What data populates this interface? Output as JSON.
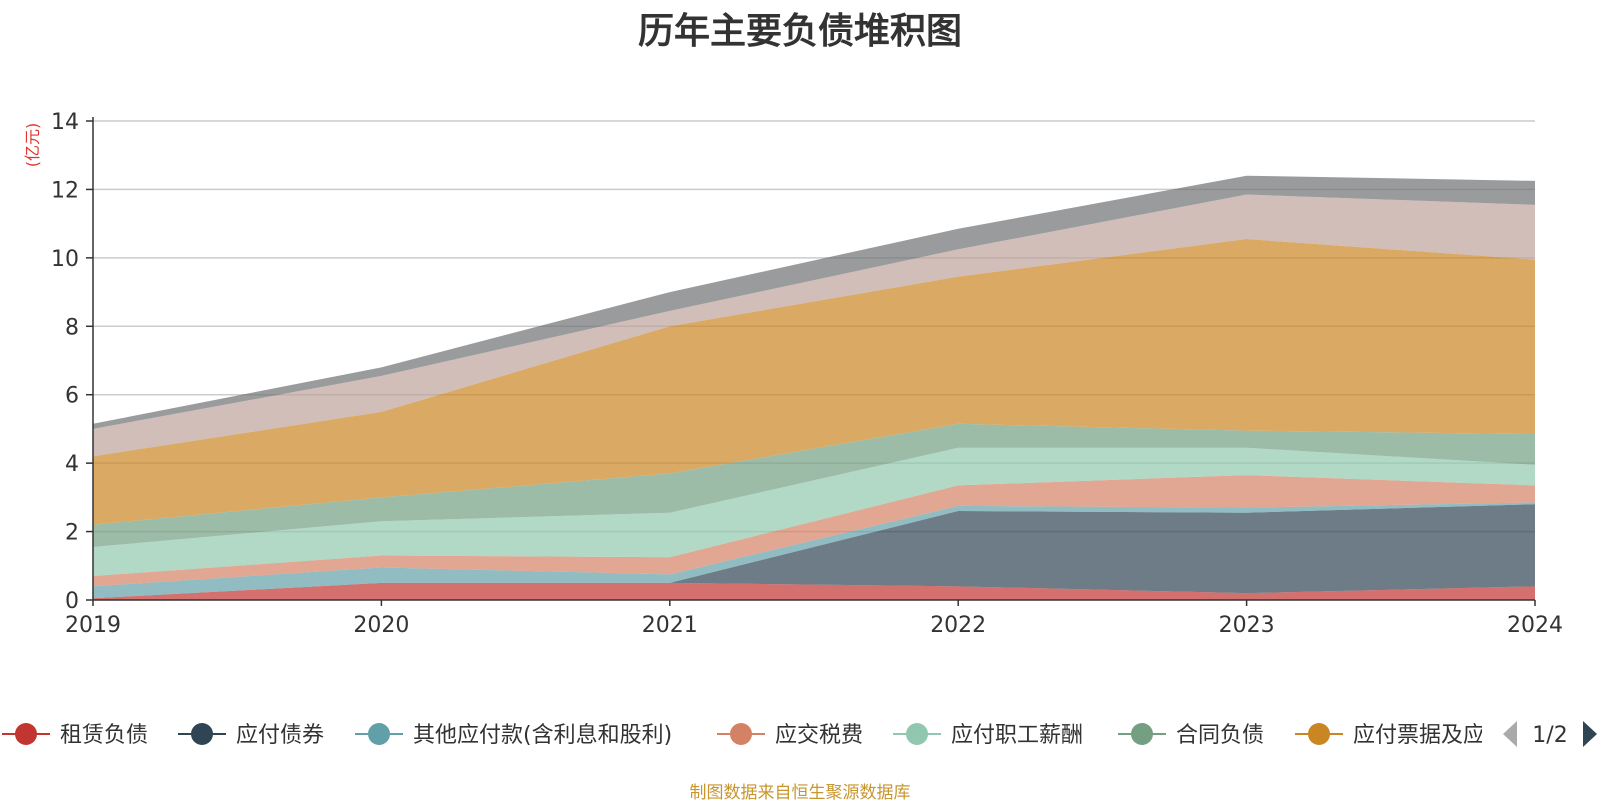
{
  "source_note": "制图数据来自恒生聚源数据库",
  "legend_pager": {
    "label": "1/2"
  },
  "chart_data": {
    "type": "area",
    "stacked": true,
    "title": "历年主要负债堆积图",
    "ylabel": "(亿元)",
    "xlabel": "",
    "categories": [
      "2019",
      "2020",
      "2021",
      "2022",
      "2023",
      "2024"
    ],
    "ylim": [
      0,
      14
    ],
    "yticks": [
      0,
      2,
      4,
      6,
      8,
      10,
      12,
      14
    ],
    "grid": true,
    "legend_position": "bottom",
    "series": [
      {
        "name": "租赁负债",
        "color": "#c23531",
        "values": [
          0.05,
          0.5,
          0.5,
          0.4,
          0.2,
          0.4
        ]
      },
      {
        "name": "应付债券",
        "color": "#2f4554",
        "values": [
          0.0,
          0.0,
          0.0,
          2.2,
          2.35,
          2.4
        ]
      },
      {
        "name": "其他应付款(含利息和股利)",
        "color": "#61a0a8",
        "values": [
          0.35,
          0.45,
          0.25,
          0.15,
          0.15,
          0.05
        ]
      },
      {
        "name": "应交税费",
        "color": "#d48265",
        "values": [
          0.3,
          0.35,
          0.5,
          0.6,
          0.95,
          0.5
        ]
      },
      {
        "name": "应付职工薪酬",
        "color": "#91c7ae",
        "values": [
          0.85,
          1.0,
          1.3,
          1.1,
          0.8,
          0.6
        ]
      },
      {
        "name": "合同负债",
        "color": "#749f83",
        "values": [
          0.65,
          0.7,
          1.15,
          0.7,
          0.5,
          0.9
        ]
      },
      {
        "name": "应付票据及应付账款",
        "color": "#ca8622",
        "values": [
          2.0,
          2.5,
          4.3,
          4.3,
          5.6,
          5.1
        ]
      },
      {
        "name": "",
        "color": "#bda29a",
        "values": [
          0.8,
          1.05,
          0.45,
          0.8,
          1.3,
          1.6
        ]
      },
      {
        "name": "",
        "color": "#6e7074",
        "values": [
          0.15,
          0.25,
          0.55,
          0.6,
          0.55,
          0.7
        ]
      }
    ],
    "legend_visible": [
      "租赁负债",
      "应付债券",
      "其他应付款(含利息和股利)",
      "应交税费",
      "应付职工薪酬",
      "合同负债",
      "应付票据及应付账款"
    ]
  }
}
